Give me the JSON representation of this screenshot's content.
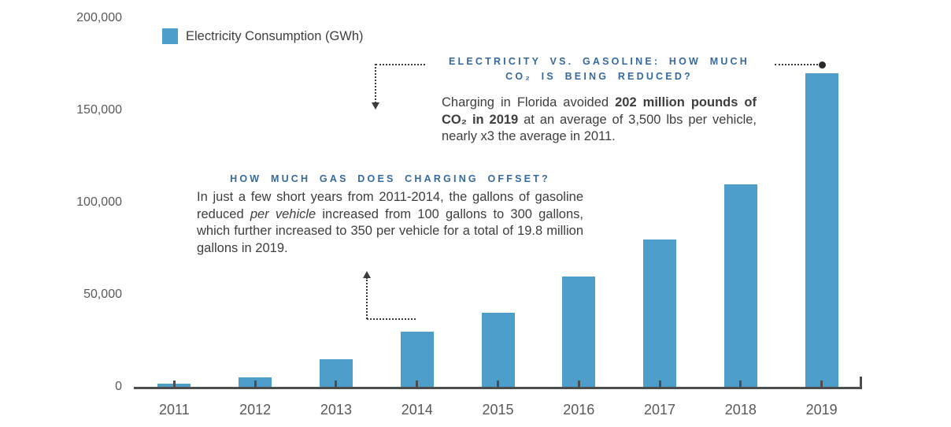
{
  "legend": {
    "label": "Electricity Consumption (GWh)"
  },
  "chart_data": {
    "type": "bar",
    "title": "",
    "xlabel": "",
    "ylabel": "",
    "categories": [
      "2011",
      "2012",
      "2013",
      "2014",
      "2015",
      "2016",
      "2017",
      "2018",
      "2019"
    ],
    "series": [
      {
        "name": "Electricity Consumption (GWh)",
        "values": [
          1500,
          5000,
          15000,
          30000,
          40000,
          60000,
          80000,
          110000,
          170000
        ]
      }
    ],
    "ylim": [
      0,
      200000
    ],
    "yticks": [
      {
        "value": 0,
        "label": "0"
      },
      {
        "value": 50000,
        "label": "50,000"
      },
      {
        "value": 100000,
        "label": "100,000"
      },
      {
        "value": 150000,
        "label": "150,000"
      },
      {
        "value": 200000,
        "label": "200,000"
      }
    ],
    "grid": false,
    "legend_position": "top-left"
  },
  "annotations": {
    "co2": {
      "heading_line1": "ELECTRICITY VS. GASOLINE: HOW MUCH",
      "heading_line2": "CO₂ IS BEING REDUCED?",
      "body_prefix": "Charging in Florida avoided ",
      "body_bold": "202 million pounds of CO₂ in 2019",
      "body_suffix": " at an average of 3,500 lbs per vehicle, nearly x3 the average in 2011."
    },
    "gas": {
      "heading": "HOW MUCH GAS DOES CHARGING OFFSET?",
      "body_prefix": "In just a few short years from 2011-2014, the gallons of gasoline reduced ",
      "body_italic": "per vehicle",
      "body_suffix": " increased from 100 gallons to 300 gallons, which further increased to 350 per vehicle for a total of 19.8 million gallons in 2019."
    }
  },
  "colors": {
    "bar": "#4D9ECB",
    "heading_blue": "#366A9E",
    "axis": "#4D4D4D",
    "tick_label": "#595959",
    "body_text": "#3E3E3E",
    "connector": "#3C3C3C"
  }
}
